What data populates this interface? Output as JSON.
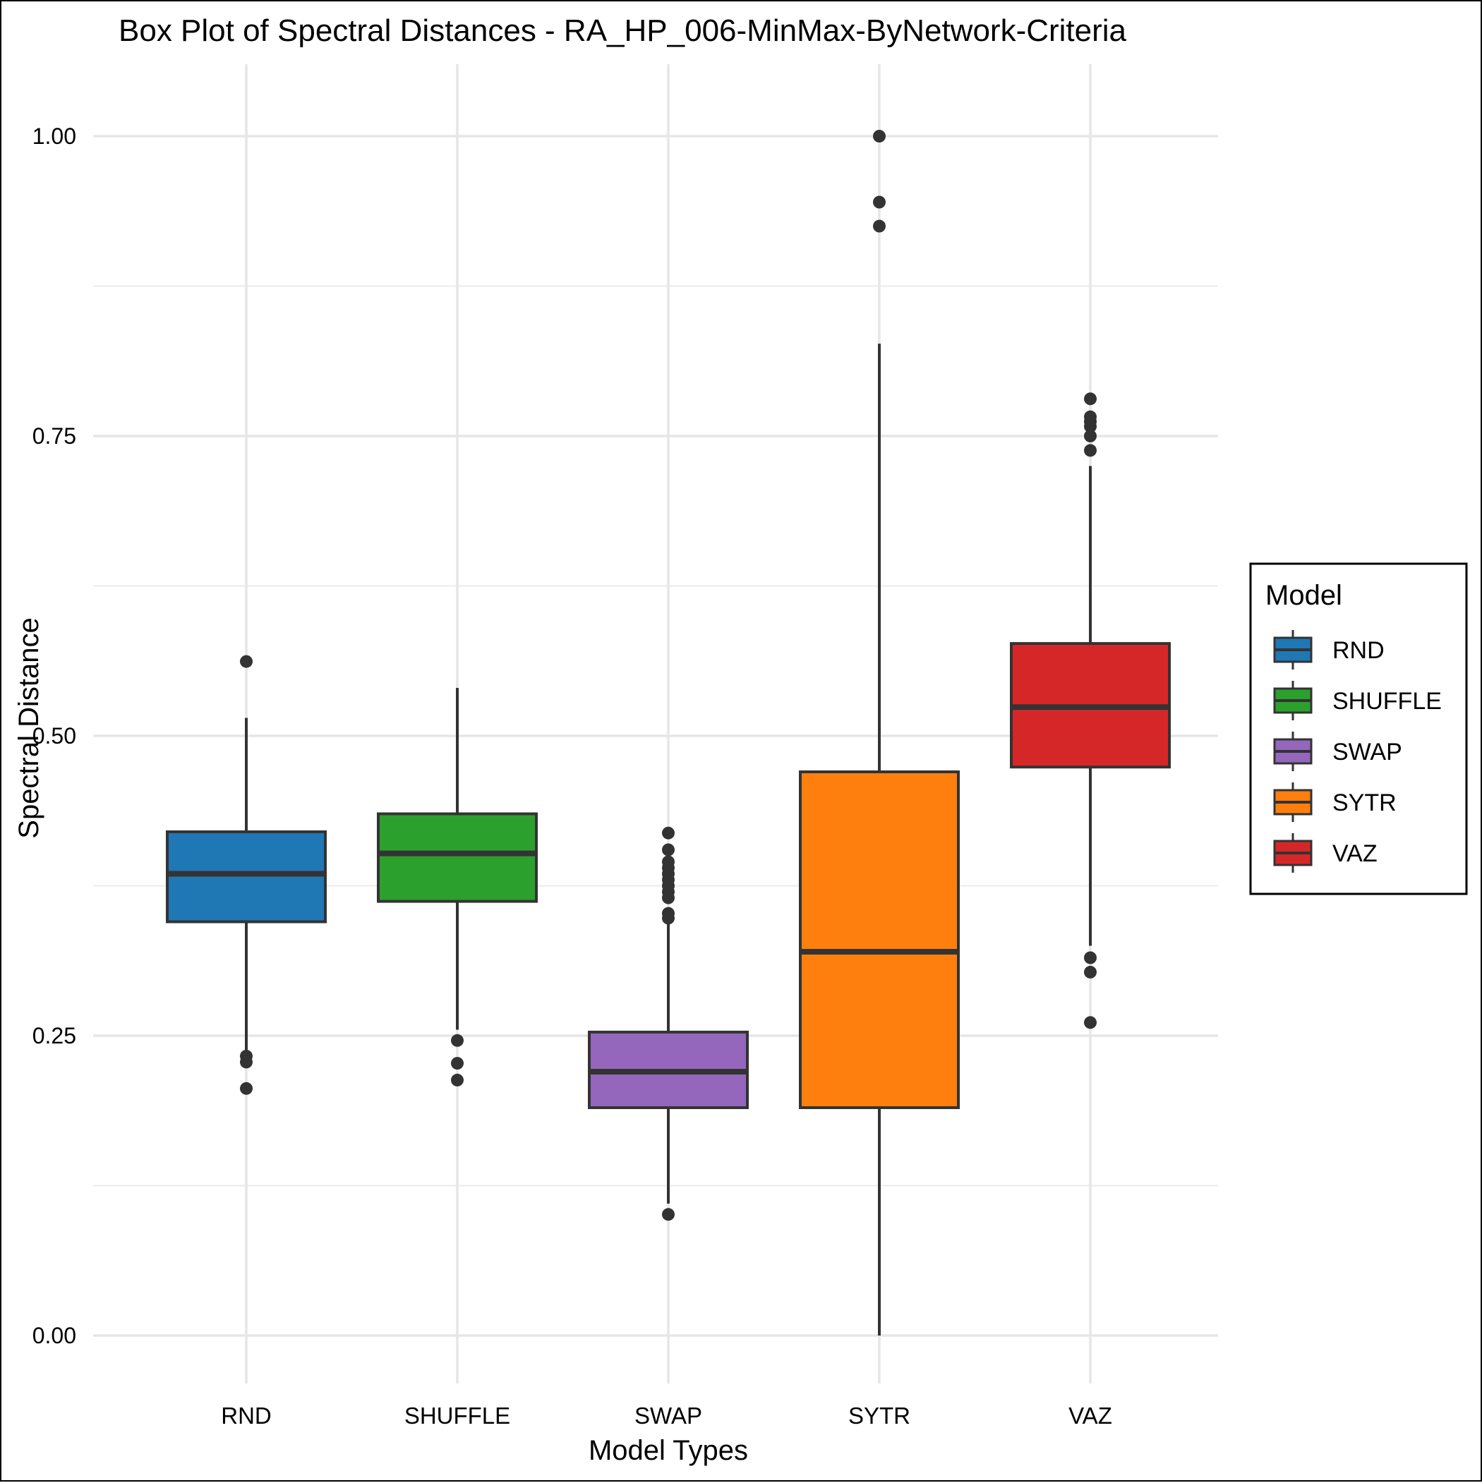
{
  "chart_data": {
    "type": "box",
    "title": "Box Plot of Spectral Distances -  RA_HP_006-MinMax-ByNetwork-Criteria",
    "xlabel": "Model Types",
    "ylabel": "Spectral Distance",
    "ylim": [
      -0.04,
      1.06
    ],
    "yticks": [
      0.0,
      0.25,
      0.5,
      0.75,
      1.0
    ],
    "yticklabels": [
      "0.00",
      "0.25",
      "0.50",
      "0.75",
      "1.00"
    ],
    "y_minor_gridlines": [
      0.125,
      0.375,
      0.625,
      0.875
    ],
    "grid": true,
    "legend": {
      "title": "Model",
      "position": "right",
      "entries": [
        "RND",
        "SHUFFLE",
        "SWAP",
        "SYTR",
        "VAZ"
      ]
    },
    "categories": [
      "RND",
      "SHUFFLE",
      "SWAP",
      "SYTR",
      "VAZ"
    ],
    "series": [
      {
        "name": "RND",
        "color": "#1f77b4",
        "whisker_low": 0.235,
        "q1": 0.345,
        "median": 0.385,
        "q3": 0.42,
        "whisker_high": 0.515,
        "outliers": [
          0.562,
          0.233,
          0.228,
          0.206
        ]
      },
      {
        "name": "SHUFFLE",
        "color": "#2ca02c",
        "whisker_low": 0.255,
        "q1": 0.362,
        "median": 0.402,
        "q3": 0.435,
        "whisker_high": 0.54,
        "outliers": [
          0.246,
          0.227,
          0.213
        ]
      },
      {
        "name": "SWAP",
        "color": "#9467bd",
        "whisker_low": 0.11,
        "q1": 0.19,
        "median": 0.22,
        "q3": 0.253,
        "whisker_high": 0.345,
        "outliers": [
          0.419,
          0.405,
          0.395,
          0.39,
          0.385,
          0.38,
          0.375,
          0.37,
          0.365,
          0.352,
          0.348,
          0.101
        ]
      },
      {
        "name": "SYTR",
        "color": "#ff7f0e",
        "whisker_low": 0.0,
        "q1": 0.19,
        "median": 0.32,
        "q3": 0.47,
        "whisker_high": 0.827,
        "outliers": [
          1.0,
          0.945,
          0.925
        ]
      },
      {
        "name": "VAZ",
        "color": "#d62728",
        "whisker_low": 0.325,
        "q1": 0.474,
        "median": 0.524,
        "q3": 0.577,
        "whisker_high": 0.725,
        "outliers": [
          0.781,
          0.766,
          0.762,
          0.758,
          0.75,
          0.738,
          0.315,
          0.303,
          0.261
        ]
      }
    ]
  }
}
